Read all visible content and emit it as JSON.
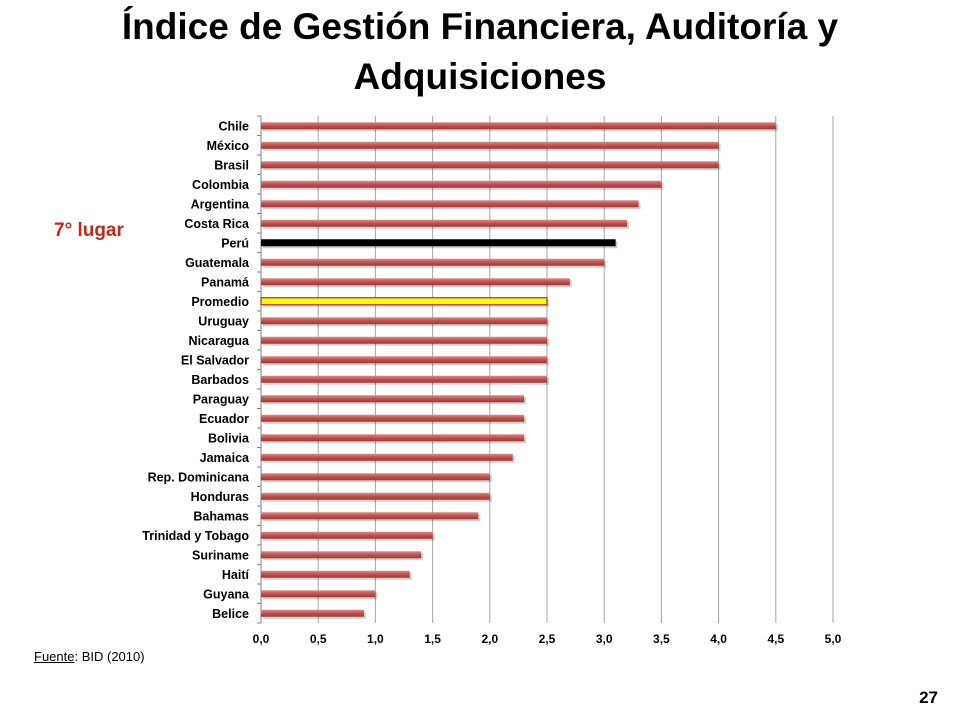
{
  "title": "Índice de Gestión Financiera, Auditoría y Adquisiciones",
  "rank_note": "7° lugar",
  "source": {
    "label": "Fuente",
    "text": ": BID (2010)"
  },
  "slide_number": "27",
  "colors": {
    "bar": "#c0504d",
    "highlight_peru": "#000000",
    "highlight_promedio": "#ffff00",
    "grid": "#a6a6a6"
  },
  "chart_data": {
    "type": "bar",
    "orientation": "horizontal",
    "categories": [
      "Chile",
      "México",
      "Brasil",
      "Colombia",
      "Argentina",
      "Costa Rica",
      "Perú",
      "Guatemala",
      "Panamá",
      "Promedio",
      "Uruguay",
      "Nicaragua",
      "El Salvador",
      "Barbados",
      "Paraguay",
      "Ecuador",
      "Bolivia",
      "Jamaica",
      "Rep. Dominicana",
      "Honduras",
      "Bahamas",
      "Trinidad y Tobago",
      "Suriname",
      "Haití",
      "Guyana",
      "Belice"
    ],
    "values": [
      4.5,
      4.0,
      4.0,
      3.5,
      3.3,
      3.2,
      3.1,
      3.0,
      2.7,
      2.5,
      2.5,
      2.5,
      2.5,
      2.5,
      2.3,
      2.3,
      2.3,
      2.2,
      2.0,
      2.0,
      1.9,
      1.5,
      1.4,
      1.3,
      1.0,
      0.9
    ],
    "highlights": {
      "Perú": "black",
      "Promedio": "yellow"
    },
    "xlim": [
      0,
      5
    ],
    "xticks": [
      "0,0",
      "0,5",
      "1,0",
      "1,5",
      "2,0",
      "2,5",
      "3,0",
      "3,5",
      "4,0",
      "4,5",
      "5,0"
    ],
    "grid": true,
    "legend": "none"
  }
}
